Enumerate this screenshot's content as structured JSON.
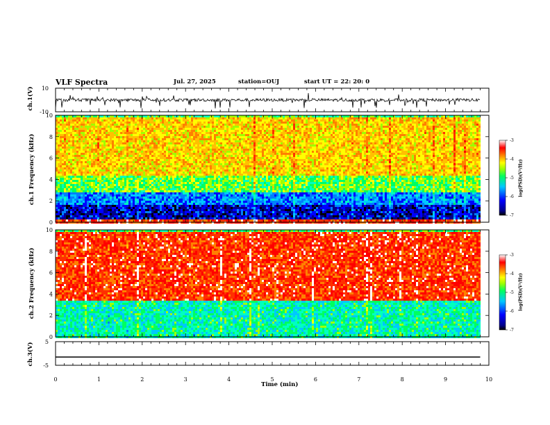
{
  "header": {
    "title": "VLF Spectra",
    "date": "Jul. 27, 2025",
    "station": "station=OUJ",
    "start": "start UT =  22: 20: 0"
  },
  "chart_data": [
    {
      "type": "line",
      "panel": "ch.1 waveform",
      "ylabel": "ch.1(V)",
      "ylim": [
        -10,
        10
      ],
      "yticks": [
        "10",
        "-10"
      ],
      "baseline": 0,
      "x_range_min": [
        0,
        9.8
      ]
    },
    {
      "type": "heatmap",
      "panel": "ch.1 spectrogram",
      "ylabel": "ch.1 Frequency (kHz)",
      "ylim": [
        0,
        10
      ],
      "yticks": [
        "0",
        "2",
        "4",
        "6",
        "8",
        "10"
      ],
      "x_range_min": [
        0,
        9.8
      ],
      "bands": [
        {
          "from": 0.0,
          "to": 0.4,
          "level": "high"
        },
        {
          "from": 0.4,
          "to": 1.8,
          "level": "very low"
        },
        {
          "from": 1.8,
          "to": 2.8,
          "level": "low"
        },
        {
          "from": 2.8,
          "to": 4.5,
          "level": "medium"
        },
        {
          "from": 4.5,
          "to": 10.0,
          "level": "medium-high"
        }
      ],
      "colorbar": {
        "label": "log(PSD)(V²/Hz)",
        "ticks": [
          "-3",
          "-4",
          "-5",
          "-6",
          "-7"
        ],
        "range": [
          -7,
          -3
        ]
      }
    },
    {
      "type": "heatmap",
      "panel": "ch.2 spectrogram",
      "ylabel": "ch.2 Frequency (kHz)",
      "ylim": [
        0,
        10
      ],
      "yticks": [
        "0",
        "2",
        "4",
        "6",
        "8",
        "10"
      ],
      "x_range_min": [
        0,
        9.8
      ],
      "bands": [
        {
          "from": 0.0,
          "to": 3.5,
          "level": "medium-low"
        },
        {
          "from": 3.5,
          "to": 10.0,
          "level": "high"
        }
      ],
      "colorbar": {
        "label": "log(PSD)(V²/Hz)",
        "ticks": [
          "-3",
          "-4",
          "-5",
          "-6",
          "-7"
        ],
        "range": [
          -7,
          -3
        ]
      }
    },
    {
      "type": "line",
      "panel": "ch.3 waveform",
      "ylabel": "ch.3(V)",
      "ylim": [
        -5,
        5
      ],
      "yticks": [
        "5",
        "-5"
      ],
      "constant_value": -1.5,
      "x_range_min": [
        0,
        9.8
      ]
    }
  ],
  "xaxis": {
    "label": "Time (min)",
    "range": [
      0,
      10
    ],
    "ticks": [
      "0",
      "1",
      "2",
      "3",
      "4",
      "5",
      "6",
      "7",
      "8",
      "9",
      "10"
    ]
  }
}
